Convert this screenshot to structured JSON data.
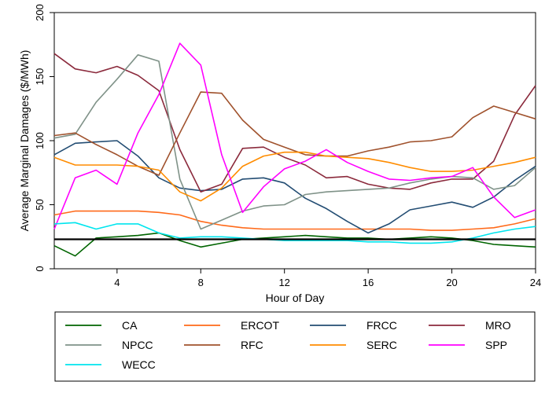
{
  "chart_data": {
    "type": "line",
    "title": "",
    "xlabel": "Hour of Day",
    "ylabel": "Average Marginal Damages ($/MWh)",
    "xlim": [
      1,
      24
    ],
    "ylim": [
      0,
      200
    ],
    "xticks": [
      "4",
      "8",
      "12",
      "16",
      "20",
      "24"
    ],
    "yticks": [
      "0",
      "50",
      "100",
      "150",
      "200"
    ],
    "grid": false,
    "legend_position": "bottom",
    "reference_line": {
      "y": 23
    },
    "x": [
      1,
      2,
      3,
      4,
      5,
      6,
      7,
      8,
      9,
      10,
      11,
      12,
      13,
      14,
      15,
      16,
      17,
      18,
      19,
      20,
      21,
      22,
      23,
      24
    ],
    "series": [
      {
        "name": "CA",
        "color": "#006400",
        "values": [
          18,
          10,
          24,
          25,
          26,
          28,
          22,
          17,
          20,
          23,
          24,
          25,
          26,
          25,
          24,
          24,
          23,
          24,
          25,
          24,
          22,
          19,
          18,
          17
        ]
      },
      {
        "name": "ERCOT",
        "color": "#ff6a1a",
        "values": [
          42,
          45,
          45,
          45,
          45,
          44,
          42,
          37,
          34,
          32,
          31,
          31,
          31,
          31,
          31,
          31,
          31,
          31,
          30,
          30,
          31,
          32,
          35,
          39
        ]
      },
      {
        "name": "FRCC",
        "color": "#234d73",
        "values": [
          89,
          98,
          99,
          100,
          88,
          71,
          63,
          61,
          62,
          70,
          71,
          67,
          55,
          47,
          37,
          28,
          35,
          46,
          49,
          52,
          48,
          56,
          69,
          80
        ]
      },
      {
        "name": "MRO",
        "color": "#8b2a3c",
        "values": [
          168,
          156,
          153,
          158,
          151,
          139,
          93,
          60,
          66,
          94,
          95,
          87,
          81,
          71,
          72,
          66,
          63,
          62,
          67,
          70,
          70,
          84,
          120,
          143
        ]
      },
      {
        "name": "NPCC",
        "color": "#7f9288",
        "values": [
          102,
          105,
          130,
          148,
          167,
          162,
          70,
          31,
          38,
          45,
          49,
          50,
          58,
          60,
          61,
          62,
          63,
          67,
          70,
          72,
          71,
          62,
          65,
          79
        ]
      },
      {
        "name": "RFC",
        "color": "#a0522d",
        "values": [
          104,
          106,
          97,
          89,
          80,
          73,
          106,
          138,
          137,
          116,
          101,
          95,
          89,
          88,
          88,
          92,
          95,
          99,
          100,
          103,
          118,
          127,
          122,
          117
        ]
      },
      {
        "name": "SERC",
        "color": "#ff8c00",
        "values": [
          87,
          81,
          81,
          81,
          80,
          77,
          60,
          53,
          63,
          80,
          88,
          91,
          91,
          88,
          87,
          86,
          83,
          79,
          76,
          76,
          77,
          80,
          83,
          87
        ]
      },
      {
        "name": "SPP",
        "color": "#ff00ff",
        "values": [
          31,
          71,
          77,
          66,
          106,
          136,
          176,
          159,
          89,
          44,
          64,
          78,
          84,
          93,
          83,
          76,
          70,
          69,
          71,
          72,
          79,
          56,
          40,
          46
        ]
      },
      {
        "name": "WECC",
        "color": "#00e5ee",
        "values": [
          35,
          36,
          31,
          35,
          35,
          28,
          24,
          25,
          25,
          24,
          23,
          22,
          22,
          22,
          22,
          21,
          21,
          20,
          20,
          21,
          24,
          28,
          31,
          33
        ]
      }
    ]
  }
}
